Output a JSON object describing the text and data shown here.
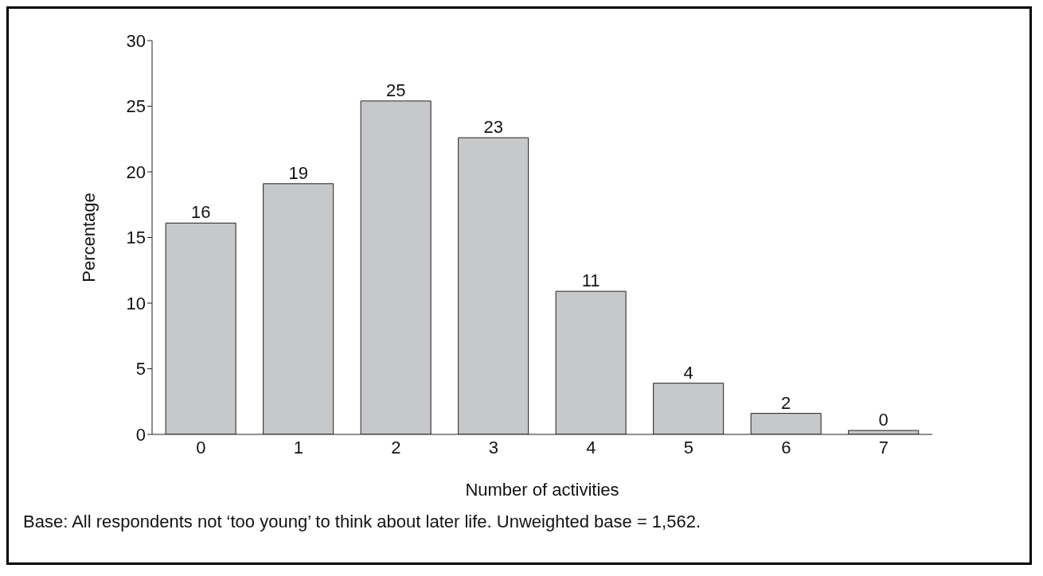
{
  "chart_data": {
    "type": "bar",
    "xlabel": "Number of activities",
    "ylabel": "Percentage",
    "categories": [
      "0",
      "1",
      "2",
      "3",
      "4",
      "5",
      "6",
      "7"
    ],
    "values": [
      16.1,
      19.1,
      25.4,
      22.6,
      10.9,
      3.9,
      1.6,
      0.3
    ],
    "value_labels": [
      "16",
      "19",
      "25",
      "23",
      "11",
      "4",
      "2",
      "0"
    ],
    "color": "#c7c8ca",
    "ylim": [
      0,
      30
    ],
    "yticks": [
      0,
      5,
      10,
      15,
      20,
      25,
      30
    ],
    "grid": false,
    "legend": false,
    "annotations": [
      "Base: All respondents not ‘too young’ to think about later life. Unweighted base = 1,562."
    ]
  }
}
